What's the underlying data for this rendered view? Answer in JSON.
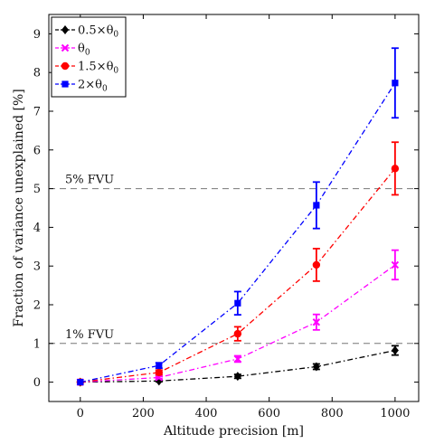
{
  "chart_data": {
    "type": "line",
    "title": "",
    "xlabel": "Altitude precision [m]",
    "ylabel": "Fraction of variance unexplained [%]",
    "xlim": [
      -100,
      1075
    ],
    "ylim": [
      -0.5,
      9.5
    ],
    "xticks": [
      0,
      200,
      400,
      600,
      800,
      1000
    ],
    "yticks": [
      0,
      1,
      2,
      3,
      4,
      5,
      6,
      7,
      8,
      9
    ],
    "grid": false,
    "legend_position": "top-left",
    "x": [
      0,
      250,
      500,
      750,
      1000
    ],
    "series": [
      {
        "name": "0.5×θ₀",
        "label_main": "0.5×θ",
        "label_sub": "0",
        "color": "#000000",
        "marker": "diamond",
        "values": [
          0.0,
          0.03,
          0.15,
          0.4,
          0.82
        ],
        "errors": [
          0.0,
          0.02,
          0.05,
          0.07,
          0.12
        ]
      },
      {
        "name": "θ₀",
        "label_main": "θ",
        "label_sub": "0",
        "color": "#ff00ff",
        "marker": "cross",
        "values": [
          0.0,
          0.12,
          0.6,
          1.55,
          3.03
        ],
        "errors": [
          0.0,
          0.03,
          0.08,
          0.2,
          0.38
        ]
      },
      {
        "name": "1.5×θ₀",
        "label_main": "1.5×θ",
        "label_sub": "0",
        "color": "#ff0000",
        "marker": "circle",
        "values": [
          0.0,
          0.25,
          1.25,
          3.03,
          5.52
        ],
        "errors": [
          0.0,
          0.06,
          0.18,
          0.42,
          0.68
        ]
      },
      {
        "name": "2×θ₀",
        "label_main": "2×θ",
        "label_sub": "0",
        "color": "#0000ff",
        "marker": "square",
        "values": [
          0.0,
          0.43,
          2.04,
          4.57,
          7.73
        ],
        "errors": [
          0.0,
          0.07,
          0.3,
          0.6,
          0.9
        ]
      }
    ],
    "reference_lines": [
      {
        "y": 5,
        "label": "5% FVU"
      },
      {
        "y": 1,
        "label": "1% FVU"
      }
    ]
  }
}
